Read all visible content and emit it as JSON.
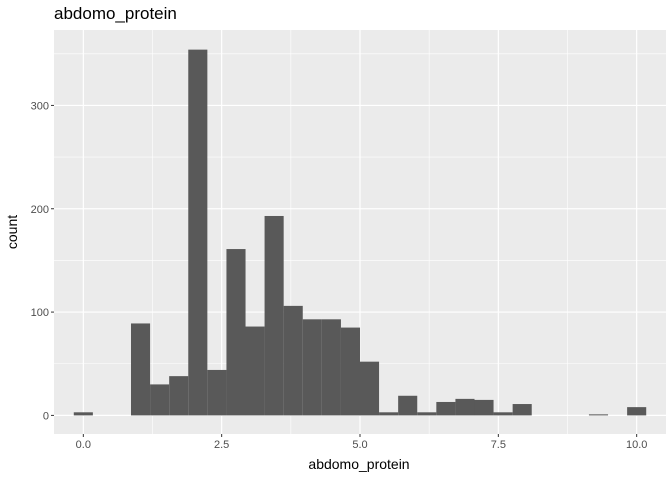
{
  "chart_data": {
    "type": "bar",
    "title": "abdomo_protein",
    "xlabel": "abdomo_protein",
    "ylabel": "count",
    "xlim": [
      -0.53,
      10.53
    ],
    "ylim": [
      -18,
      373
    ],
    "x_ticks": [
      0,
      2.5,
      5,
      7.5,
      10
    ],
    "x_tick_labels": [
      "0.0",
      "2.5",
      "5.0",
      "7.5",
      "10.0"
    ],
    "y_ticks": [
      0,
      100,
      200,
      300
    ],
    "y_tick_labels": [
      "0",
      "100",
      "200",
      "300"
    ],
    "grid": true,
    "bin_width": 0.345,
    "bin_centers": [
      0.0,
      1.034,
      1.379,
      1.724,
      2.069,
      2.414,
      2.759,
      3.103,
      3.448,
      3.793,
      4.138,
      4.483,
      4.828,
      5.172,
      5.517,
      5.862,
      6.207,
      6.552,
      6.897,
      7.241,
      7.586,
      7.931,
      9.31,
      10.0
    ],
    "values": [
      3,
      89,
      30,
      38,
      354,
      44,
      161,
      86,
      193,
      106,
      93,
      93,
      85,
      52,
      3,
      19,
      3,
      13,
      16,
      15,
      3,
      11,
      1,
      8
    ],
    "colors": {
      "bar": "#595959",
      "panel": "#ebebeb",
      "grid_major": "#ffffff"
    }
  }
}
